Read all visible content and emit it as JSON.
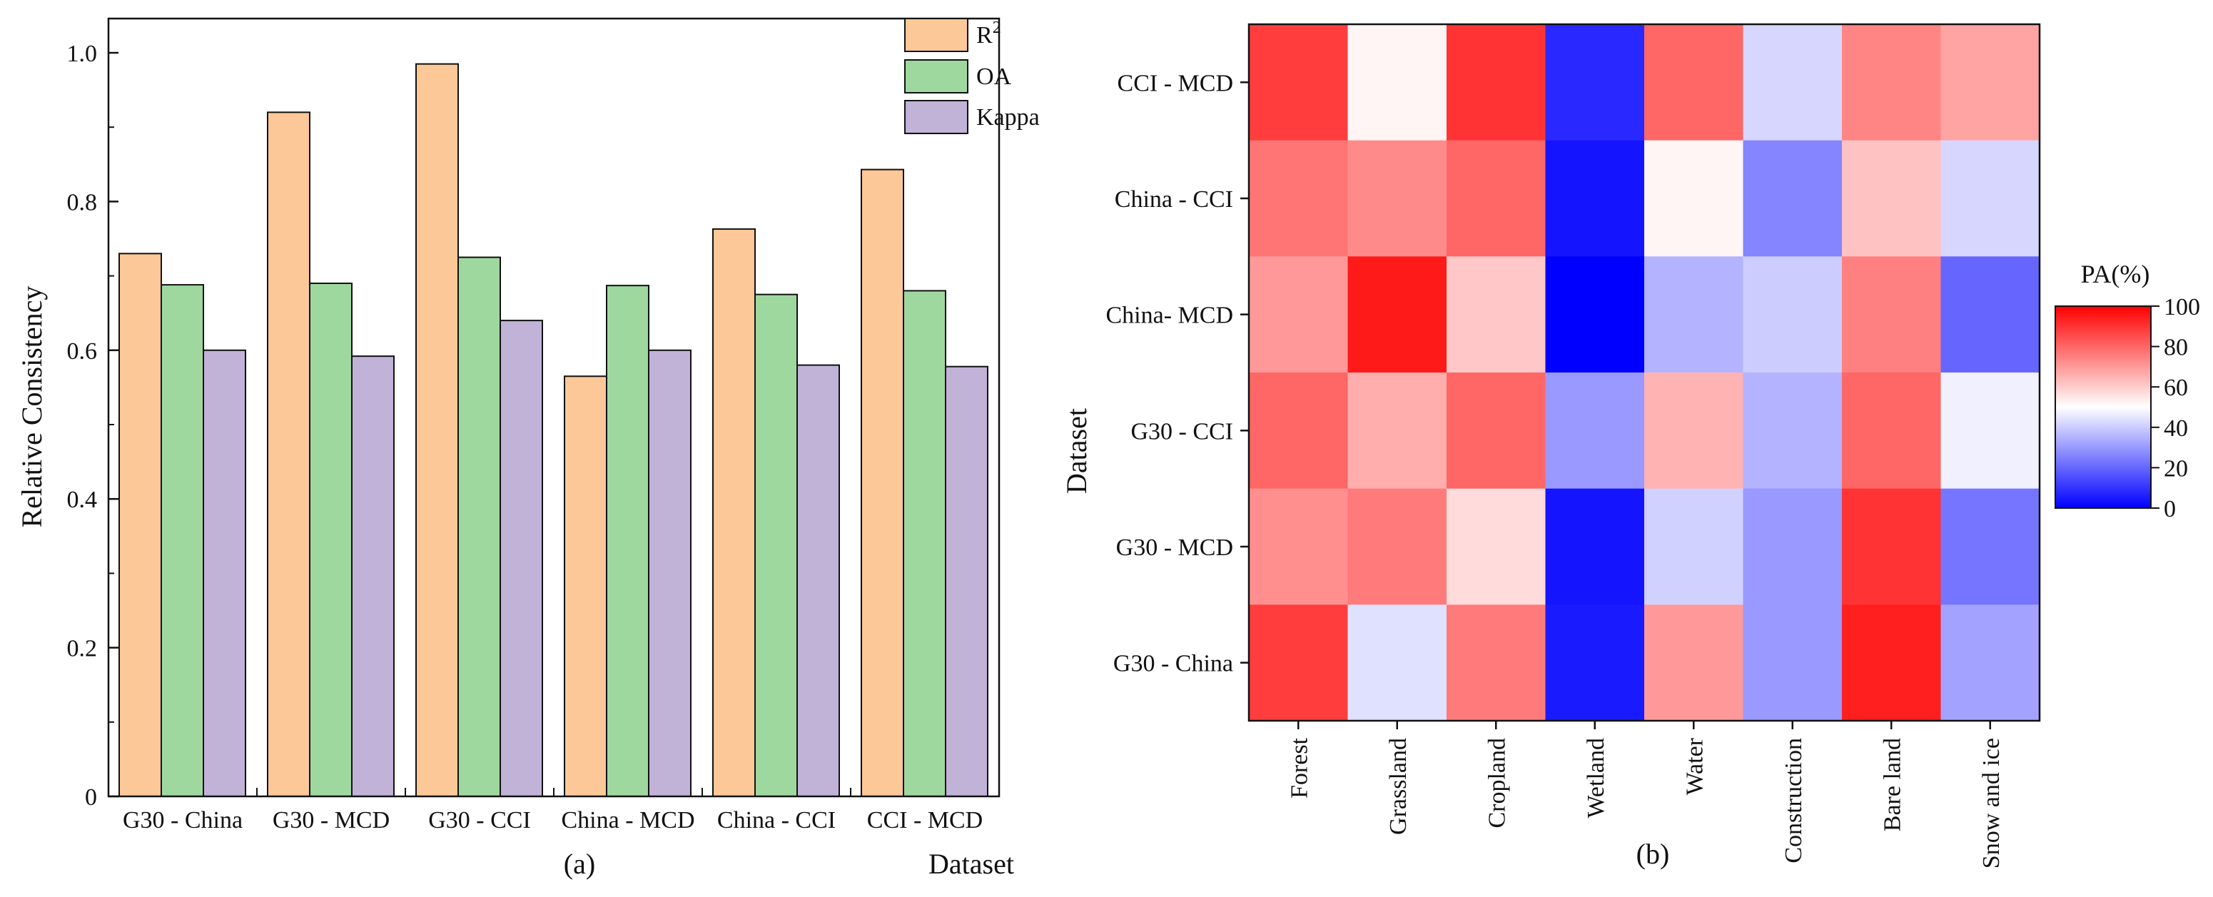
{
  "colors": {
    "r2": "#fdc897",
    "oa": "#9fd89f",
    "kappa": "#c1b2d8",
    "heat_low": "#0000ff",
    "heat_mid": "#ffffff",
    "heat_high": "#ff0000"
  },
  "chart_data": [
    {
      "type": "bar",
      "panel_label": "(a)",
      "title": "",
      "xlabel": "Dataset",
      "ylabel": "Relative Consistency",
      "ylim": [
        0,
        1.0
      ],
      "yticks": [
        0,
        0.2,
        0.4,
        0.6,
        0.8,
        1.0
      ],
      "ytick_labels": [
        "0",
        "0.2",
        "0.4",
        "0.6",
        "0.8",
        "1.0"
      ],
      "categories": [
        "G30 - China",
        "G30 - MCD",
        "G30 - CCI",
        "China - MCD",
        "China - CCI",
        "CCI - MCD"
      ],
      "series": [
        {
          "name": "R2",
          "label_main": "R",
          "label_sup": "2",
          "values": [
            0.73,
            0.92,
            0.985,
            0.565,
            0.763,
            0.843
          ]
        },
        {
          "name": "OA",
          "label_main": "OA",
          "label_sup": "",
          "values": [
            0.688,
            0.69,
            0.725,
            0.687,
            0.675,
            0.68
          ]
        },
        {
          "name": "Kappa",
          "label_main": "Kappa",
          "label_sup": "",
          "values": [
            0.6,
            0.592,
            0.64,
            0.6,
            0.58,
            0.578
          ]
        }
      ],
      "legend_position": "top-right",
      "grid": false
    },
    {
      "type": "heatmap",
      "panel_label": "(b)",
      "title": "",
      "xlabel": "",
      "ylabel": "Dataset",
      "x_categories": [
        "Forest",
        "Grassland",
        "Cropland",
        "Wetland",
        "Water",
        "Construction",
        "Bare land",
        "Snow and ice"
      ],
      "y_categories": [
        "CCI - MCD",
        "China - CCI",
        "China- MCD",
        "G30 - CCI",
        "G30 - MCD",
        "G30 - China"
      ],
      "values": [
        [
          88,
          52,
          90,
          8,
          80,
          42,
          74,
          68
        ],
        [
          77,
          73,
          80,
          4,
          52,
          26,
          62,
          42
        ],
        [
          70,
          95,
          61,
          0,
          35,
          40,
          75,
          20
        ],
        [
          80,
          66,
          80,
          30,
          65,
          35,
          80,
          47
        ],
        [
          72,
          76,
          57,
          4,
          41,
          30,
          90,
          23
        ],
        [
          88,
          44,
          76,
          5,
          70,
          30,
          94,
          32
        ]
      ],
      "colorbar": {
        "title": "PA(%)",
        "min": 0,
        "max": 100,
        "ticks": [
          0,
          20,
          40,
          60,
          80,
          100
        ],
        "tick_labels": [
          "0",
          "20",
          "40",
          "60",
          "80",
          "100"
        ]
      }
    }
  ]
}
